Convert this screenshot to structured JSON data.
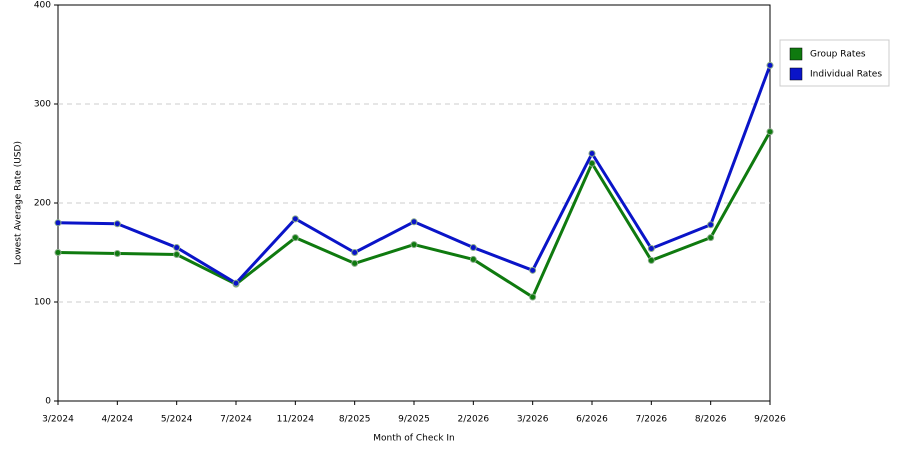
{
  "chart_data": {
    "type": "line",
    "x_label": "Month of Check In",
    "y_label": "Lowest Average Rate (USD)",
    "categories": [
      "3/2024",
      "4/2024",
      "5/2024",
      "7/2024",
      "11/2024",
      "8/2025",
      "9/2025",
      "2/2026",
      "3/2026",
      "6/2026",
      "7/2026",
      "8/2026",
      "9/2026"
    ],
    "series": [
      {
        "name": "Group Rates",
        "color": "#0f7a0f",
        "values": [
          150,
          149,
          148,
          118,
          165,
          139,
          158,
          143,
          105,
          240,
          142,
          165,
          272
        ]
      },
      {
        "name": "Individual Rates",
        "color": "#0a14c8",
        "values": [
          180,
          179,
          155,
          119,
          184,
          150,
          181,
          155,
          132,
          250,
          154,
          178,
          339
        ]
      }
    ],
    "ylim": [
      0,
      400
    ],
    "yticks": [
      0,
      100,
      200,
      300,
      400
    ],
    "grid": true,
    "legend": "right"
  }
}
